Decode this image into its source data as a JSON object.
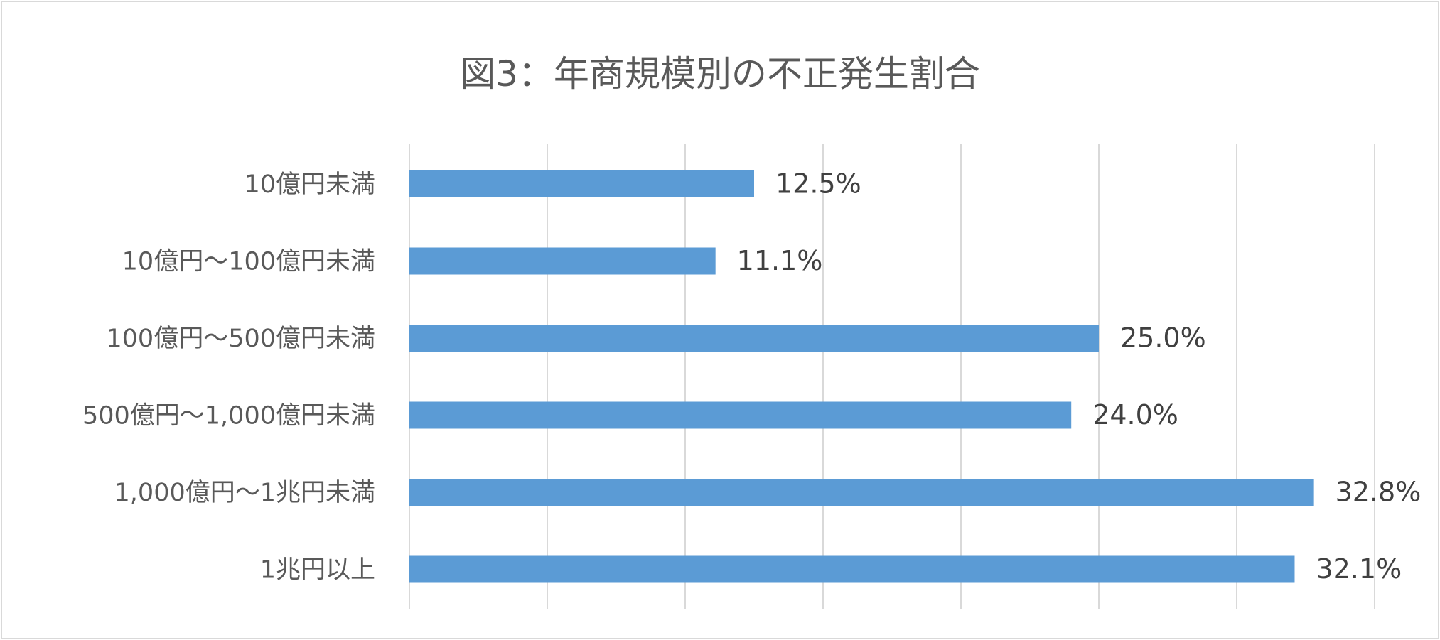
{
  "chart_data": {
    "type": "bar",
    "orientation": "horizontal",
    "title": "図3：年商規模別の不正発生割合",
    "categories": [
      "10億円未満",
      "10億円～100億円未満",
      "100億円～500億円未満",
      "500億円～1,000億円未満",
      "1,000億円～1兆円未満",
      "1兆円以上"
    ],
    "values": [
      12.5,
      11.1,
      25.0,
      24.0,
      32.8,
      32.1
    ],
    "data_labels": [
      "12.5%",
      "11.1%",
      "25.0%",
      "24.0%",
      "32.8%",
      "32.1%"
    ],
    "xlim": [
      0,
      35
    ],
    "gridlines": true,
    "tick_labels_shown": false,
    "legend": "none",
    "bar_color": "#5b9bd5"
  }
}
